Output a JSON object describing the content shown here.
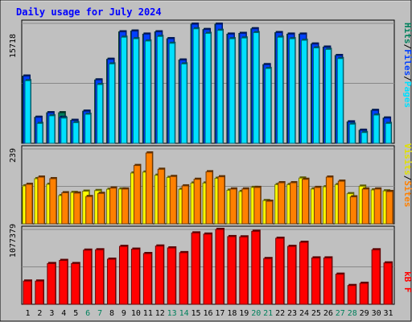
{
  "colors": {
    "background": "#c0c0c0",
    "border": "#000000",
    "title": "#0000ff",
    "hits": "#00805c",
    "files": "#0040ff",
    "pages": "#00e0ff",
    "visits": "#ffff00",
    "sites": "#ff8000",
    "kbytes": "#ff0000",
    "weekend_day": "#00805c",
    "weekday_day": "#000000"
  },
  "chart_data": [
    {
      "type": "bar",
      "panel": "top",
      "title": "Daily usage for July 2024",
      "ylabel_max": "15718",
      "ylim": [
        0,
        15718
      ],
      "grid": true,
      "legend": [
        {
          "name": "Pages",
          "color": "#00e0ff"
        },
        {
          "name": "Files",
          "color": "#0040ff"
        },
        {
          "name": "Hits",
          "color": "#00805c"
        }
      ],
      "categories": [
        "1",
        "2",
        "3",
        "4",
        "5",
        "6",
        "7",
        "8",
        "9",
        "10",
        "11",
        "12",
        "13",
        "14",
        "15",
        "16",
        "17",
        "18",
        "19",
        "20",
        "21",
        "22",
        "23",
        "24",
        "25",
        "26",
        "27",
        "28",
        "29",
        "30",
        "31"
      ],
      "series": [
        {
          "name": "Hits",
          "values": [
            8800,
            3400,
            4000,
            4000,
            3000,
            4200,
            8300,
            11000,
            14600,
            14700,
            14300,
            14600,
            13700,
            10900,
            15600,
            14900,
            15600,
            14300,
            14400,
            15000,
            10300,
            14500,
            14300,
            14300,
            13000,
            12600,
            11500,
            2800,
            1700,
            4300,
            3300
          ]
        },
        {
          "name": "Files",
          "values": [
            8800,
            3400,
            4000,
            3400,
            3000,
            4200,
            8300,
            11000,
            14600,
            14700,
            14300,
            14600,
            13700,
            10900,
            15600,
            14900,
            15600,
            14300,
            14400,
            15000,
            10300,
            14500,
            14300,
            14300,
            13000,
            12600,
            11500,
            2800,
            1700,
            4300,
            3300
          ]
        },
        {
          "name": "Pages",
          "values": [
            8200,
            2600,
            3600,
            3300,
            2700,
            3800,
            7700,
            10400,
            13900,
            13700,
            13400,
            14000,
            13100,
            10400,
            15000,
            14400,
            14800,
            13700,
            13800,
            14500,
            9800,
            13900,
            13700,
            13500,
            12500,
            12300,
            11100,
            2500,
            1400,
            3700,
            2600
          ]
        }
      ]
    },
    {
      "type": "bar",
      "panel": "middle",
      "ylabel_max": "239",
      "ylim": [
        0,
        239
      ],
      "grid": true,
      "legend": [
        {
          "name": "Sites",
          "color": "#ff8000"
        },
        {
          "name": "Visits",
          "color": "#ffff00"
        }
      ],
      "categories": [
        "1",
        "2",
        "3",
        "4",
        "5",
        "6",
        "7",
        "8",
        "9",
        "10",
        "11",
        "12",
        "13",
        "14",
        "15",
        "16",
        "17",
        "18",
        "19",
        "20",
        "21",
        "22",
        "23",
        "24",
        "25",
        "26",
        "27",
        "28",
        "29",
        "30",
        "31"
      ],
      "series": [
        {
          "name": "Visits",
          "values": [
            121,
            144,
            126,
            90,
            100,
            104,
            106,
            110,
            111,
            162,
            165,
            155,
            148,
            110,
            130,
            130,
            145,
            107,
            103,
            116,
            74,
            125,
            125,
            146,
            111,
            118,
            125,
            96,
            120,
            108,
            105
          ]
        },
        {
          "name": "Sites",
          "values": [
            126,
            149,
            144,
            99,
            98,
            87,
            97,
            114,
            111,
            186,
            226,
            174,
            151,
            121,
            142,
            166,
            150,
            111,
            111,
            116,
            72,
            131,
            131,
            142,
            116,
            149,
            136,
            86,
            111,
            111,
            103
          ]
        }
      ]
    },
    {
      "type": "bar",
      "panel": "bottom",
      "ylabel_max": "1077379",
      "ylim": [
        0,
        1077379
      ],
      "grid": true,
      "legend": [
        {
          "name": "KBytes",
          "color": "#ff0000"
        }
      ],
      "categories": [
        "1",
        "2",
        "3",
        "4",
        "5",
        "6",
        "7",
        "8",
        "9",
        "10",
        "11",
        "12",
        "13",
        "14",
        "15",
        "16",
        "17",
        "18",
        "19",
        "20",
        "21",
        "22",
        "23",
        "24",
        "25",
        "26",
        "27",
        "28",
        "29",
        "30",
        "31"
      ],
      "series": [
        {
          "name": "KBytes",
          "values": [
            334000,
            334000,
            586000,
            631000,
            586000,
            779000,
            784000,
            649000,
            833000,
            793000,
            730000,
            838000,
            811000,
            743000,
            1027000,
            1010000,
            1077379,
            974000,
            970000,
            1050000,
            658000,
            950000,
            833000,
            892000,
            667000,
            667000,
            433000,
            270000,
            302000,
            784000,
            595000
          ]
        }
      ]
    }
  ],
  "weekend_days": [
    "6",
    "7",
    "13",
    "14",
    "20",
    "21",
    "27",
    "28"
  ],
  "legend_separator": "/",
  "kb_label": "kB F"
}
